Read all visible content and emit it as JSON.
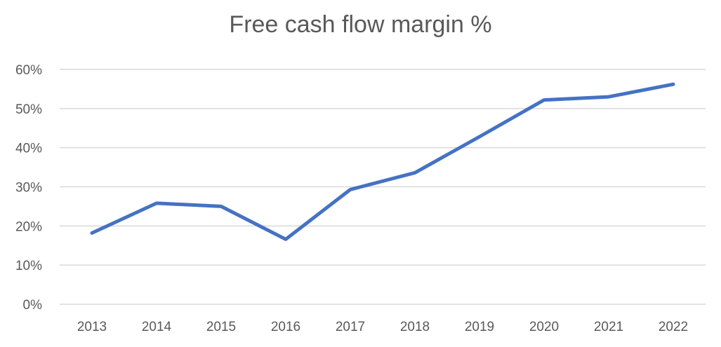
{
  "chart_data": {
    "type": "line",
    "title": "Free cash flow margin %",
    "xlabel": "",
    "ylabel": "",
    "categories": [
      "2013",
      "2014",
      "2015",
      "2016",
      "2017",
      "2018",
      "2019",
      "2020",
      "2021",
      "2022"
    ],
    "series": [
      {
        "values": [
          18.2,
          25.8,
          25.0,
          16.6,
          29.3,
          33.6,
          42.8,
          52.2,
          53.0,
          56.2
        ],
        "color": "#4472c4"
      }
    ],
    "ylim": [
      0,
      60
    ],
    "yticks": [
      0,
      10,
      20,
      30,
      40,
      50,
      60
    ],
    "ytick_labels": [
      "0%",
      "10%",
      "20%",
      "30%",
      "40%",
      "50%",
      "60%"
    ],
    "grid": true,
    "legend": "none"
  }
}
